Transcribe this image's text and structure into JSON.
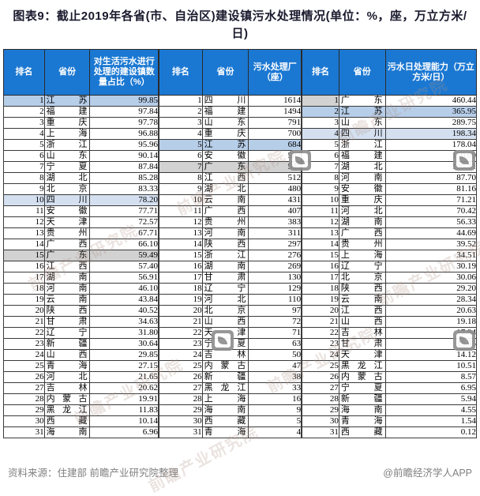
{
  "title": "图表9：截止2019年各省(市、自治区)建设镇污水处理情况(单位：%，座，万立方米/日)",
  "chart_data": [
    {
      "type": "table",
      "columns": [
        "排名",
        "省份",
        "对生活污水进行处理的建设镇数量占比（%）"
      ],
      "rows": [
        [
          "1",
          "江苏",
          "99.85",
          "blue"
        ],
        [
          "2",
          "福建",
          "97.84",
          ""
        ],
        [
          "3",
          "重庆",
          "97.78",
          ""
        ],
        [
          "4",
          "上海",
          "96.88",
          ""
        ],
        [
          "5",
          "浙江",
          "95.96",
          ""
        ],
        [
          "6",
          "山东",
          "90.14",
          ""
        ],
        [
          "7",
          "宁夏",
          "87.84",
          ""
        ],
        [
          "8",
          "湖北",
          "85.28",
          ""
        ],
        [
          "9",
          "北京",
          "83.33",
          ""
        ],
        [
          "10",
          "四川",
          "78.20",
          "lightblue"
        ],
        [
          "11",
          "安徽",
          "77.71",
          ""
        ],
        [
          "12",
          "天津",
          "72.57",
          ""
        ],
        [
          "13",
          "贵州",
          "67.71",
          ""
        ],
        [
          "14",
          "广西",
          "66.10",
          ""
        ],
        [
          "15",
          "广东",
          "59.49",
          "gray"
        ],
        [
          "16",
          "江西",
          "57.40",
          ""
        ],
        [
          "17",
          "湖南",
          "56.91",
          ""
        ],
        [
          "18",
          "河南",
          "46.10",
          ""
        ],
        [
          "19",
          "云南",
          "43.84",
          ""
        ],
        [
          "20",
          "陕西",
          "40.52",
          ""
        ],
        [
          "21",
          "甘肃",
          "34.63",
          ""
        ],
        [
          "22",
          "辽宁",
          "31.80",
          ""
        ],
        [
          "23",
          "新疆",
          "30.64",
          ""
        ],
        [
          "24",
          "山西",
          "29.85",
          ""
        ],
        [
          "25",
          "青海",
          "27.15",
          ""
        ],
        [
          "26",
          "河北",
          "21.65",
          ""
        ],
        [
          "27",
          "吉林",
          "20.62",
          ""
        ],
        [
          "28",
          "内蒙古",
          "19.91",
          ""
        ],
        [
          "29",
          "黑龙江",
          "11.83",
          ""
        ],
        [
          "30",
          "西藏",
          "10.14",
          ""
        ],
        [
          "31",
          "海南",
          "6.96",
          ""
        ]
      ]
    },
    {
      "type": "table",
      "columns": [
        "排名",
        "省份",
        "污水处理厂（座）"
      ],
      "rows": [
        [
          "1",
          "四川",
          "1614",
          ""
        ],
        [
          "2",
          "福建",
          "1494",
          ""
        ],
        [
          "3",
          "山东",
          "791",
          ""
        ],
        [
          "4",
          "重庆",
          "700",
          ""
        ],
        [
          "5",
          "江苏",
          "684",
          "blue"
        ],
        [
          "6",
          "安徽",
          "582",
          ""
        ],
        [
          "7",
          "广东",
          "545",
          "gray"
        ],
        [
          "8",
          "江西",
          "512",
          ""
        ],
        [
          "9",
          "湖北",
          "480",
          ""
        ],
        [
          "10",
          "云南",
          "431",
          ""
        ],
        [
          "11",
          "广西",
          "407",
          ""
        ],
        [
          "12",
          "贵州",
          "383",
          ""
        ],
        [
          "13",
          "河南",
          "311",
          ""
        ],
        [
          "14",
          "陕西",
          "297",
          ""
        ],
        [
          "15",
          "浙江",
          "276",
          ""
        ],
        [
          "16",
          "湖南",
          "269",
          ""
        ],
        [
          "17",
          "甘肃",
          "130",
          ""
        ],
        [
          "18",
          "辽宁",
          "129",
          ""
        ],
        [
          "19",
          "河北",
          "110",
          ""
        ],
        [
          "20",
          "北京",
          "97",
          ""
        ],
        [
          "21",
          "山西",
          "72",
          ""
        ],
        [
          "22",
          "天津",
          "71",
          ""
        ],
        [
          "23",
          "宁夏",
          "63",
          ""
        ],
        [
          "24",
          "吉林",
          "50",
          ""
        ],
        [
          "25",
          "内蒙古",
          "47",
          ""
        ],
        [
          "26",
          "新疆",
          "38",
          ""
        ],
        [
          "27",
          "黑龙江",
          "33",
          ""
        ],
        [
          "28",
          "上海",
          "16",
          ""
        ],
        [
          "29",
          "海南",
          "9",
          ""
        ],
        [
          "30",
          "西藏",
          "5",
          ""
        ],
        [
          "31",
          "青海",
          "4",
          ""
        ]
      ]
    },
    {
      "type": "table",
      "columns": [
        "排名",
        "省份",
        "污水日处理能力（万立方米/日）"
      ],
      "rows": [
        [
          "1",
          "广东",
          "460.44",
          "grayrank"
        ],
        [
          "2",
          "江苏",
          "365.95",
          "blue"
        ],
        [
          "3",
          "山东",
          "289.75",
          ""
        ],
        [
          "4",
          "四川",
          "198.34",
          "lightblue"
        ],
        [
          "5",
          "浙江",
          "178.04",
          ""
        ],
        [
          "6",
          "福建",
          "150.69",
          ""
        ],
        [
          "7",
          "湖北",
          "105.41",
          ""
        ],
        [
          "8",
          "河南",
          "87.70",
          ""
        ],
        [
          "9",
          "安徽",
          "81.16",
          ""
        ],
        [
          "10",
          "重庆",
          "71.21",
          ""
        ],
        [
          "11",
          "河北",
          "70.42",
          ""
        ],
        [
          "12",
          "湖南",
          "56.33",
          ""
        ],
        [
          "13",
          "广西",
          "44.69",
          ""
        ],
        [
          "14",
          "贵州",
          "39.52",
          ""
        ],
        [
          "15",
          "上海",
          "34.51",
          ""
        ],
        [
          "16",
          "辽宁",
          "30.19",
          ""
        ],
        [
          "17",
          "北京",
          "30.06",
          ""
        ],
        [
          "18",
          "陕西",
          "29.20",
          ""
        ],
        [
          "19",
          "云南",
          "28.34",
          ""
        ],
        [
          "20",
          "江西",
          "20.63",
          ""
        ],
        [
          "21",
          "山西",
          "19.18",
          ""
        ],
        [
          "22",
          "吉林",
          "17.94",
          ""
        ],
        [
          "23",
          "甘肃",
          "15.35",
          ""
        ],
        [
          "24",
          "天津",
          "14.12",
          ""
        ],
        [
          "25",
          "黑龙江",
          "10.51",
          ""
        ],
        [
          "26",
          "内蒙古",
          "8.57",
          ""
        ],
        [
          "27",
          "宁夏",
          "6.95",
          ""
        ],
        [
          "28",
          "新疆",
          "5.94",
          ""
        ],
        [
          "29",
          "海南",
          "4.55",
          ""
        ],
        [
          "30",
          "青海",
          "1.54",
          ""
        ],
        [
          "31",
          "西藏",
          "0.12",
          ""
        ]
      ]
    }
  ],
  "footer": {
    "source": "资料来源：住建部 前瞻产业研究院整理",
    "credit": "@前瞻经济学人APP"
  },
  "watermark": {
    "diagonal_text": "前瞻产业研究院"
  },
  "colors": {
    "header_bg": "#1b78d2",
    "row_blue": "#b7cee9",
    "row_lightblue": "#d4e0f0",
    "row_gray": "#d2d2d2",
    "grid": "#3a3a3a",
    "title_text": "#1a1a2e",
    "footer_text": "#808080"
  }
}
